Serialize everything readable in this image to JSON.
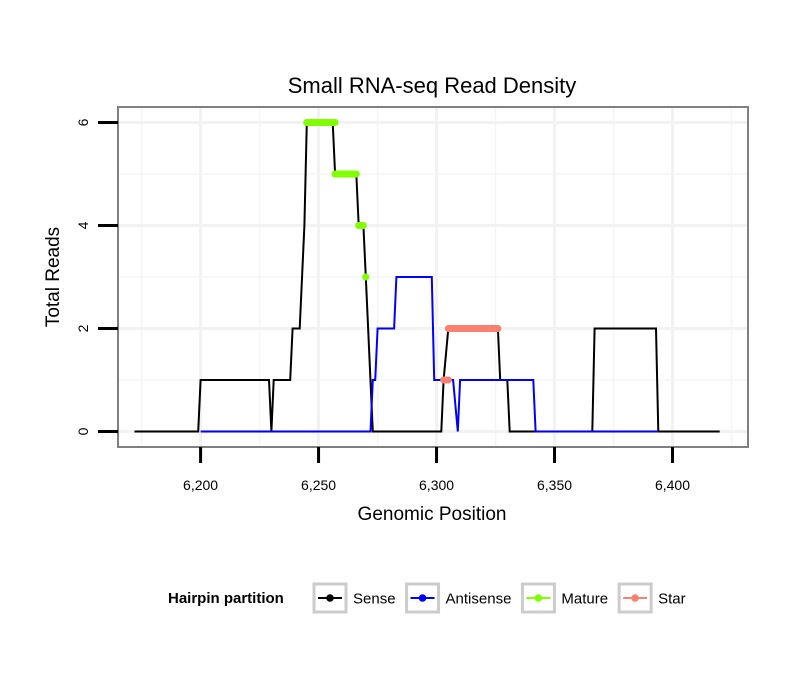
{
  "chart_data": {
    "type": "line",
    "title": "Small RNA-seq Read Density",
    "xlabel": "Genomic Position",
    "ylabel": "Total Reads",
    "xlim": [
      6165,
      6432
    ],
    "ylim": [
      -0.3,
      6.3
    ],
    "x_ticks": [
      6200,
      6250,
      6300,
      6350,
      6400
    ],
    "x_tick_labels": [
      "6,200",
      "6,250",
      "6,300",
      "6,350",
      "6,400"
    ],
    "y_ticks": [
      0,
      2,
      4,
      6
    ],
    "y_tick_labels": [
      "0",
      "2",
      "4",
      "6"
    ],
    "grid": true,
    "legend": {
      "title": "Hairpin partition",
      "position": "bottom",
      "entries": [
        "Sense",
        "Antisense",
        "Mature",
        "Star"
      ]
    },
    "series": [
      {
        "name": "Sense",
        "color": "#000000",
        "style": "line",
        "points": [
          [
            6172,
            0
          ],
          [
            6199,
            0
          ],
          [
            6200,
            1
          ],
          [
            6229,
            1
          ],
          [
            6230,
            0
          ],
          [
            6231,
            1
          ],
          [
            6238,
            1
          ],
          [
            6239,
            2
          ],
          [
            6242,
            2
          ],
          [
            6244,
            4
          ],
          [
            6245,
            6
          ],
          [
            6256,
            6
          ],
          [
            6257,
            5
          ],
          [
            6266,
            5
          ],
          [
            6267,
            4
          ],
          [
            6269,
            4
          ],
          [
            6270,
            3
          ],
          [
            6273,
            0
          ],
          [
            6302,
            0
          ],
          [
            6303,
            1
          ],
          [
            6305,
            2
          ],
          [
            6326,
            2
          ],
          [
            6327,
            1
          ],
          [
            6330,
            1
          ],
          [
            6331,
            0
          ],
          [
            6366,
            0
          ],
          [
            6367,
            2
          ],
          [
            6393,
            2
          ],
          [
            6394,
            0
          ],
          [
            6420,
            0
          ]
        ]
      },
      {
        "name": "Antisense",
        "color": "#0000ff",
        "style": "line",
        "points": [
          [
            6200,
            0
          ],
          [
            6272,
            0
          ],
          [
            6273,
            1
          ],
          [
            6274,
            1
          ],
          [
            6275,
            2
          ],
          [
            6282,
            2
          ],
          [
            6283,
            3
          ],
          [
            6298,
            3
          ],
          [
            6299,
            1
          ],
          [
            6307,
            1
          ],
          [
            6309,
            0
          ],
          [
            6310,
            1
          ],
          [
            6341,
            1
          ],
          [
            6342,
            0
          ],
          [
            6394,
            0
          ]
        ]
      },
      {
        "name": "Mature",
        "color": "#7fff00",
        "style": "segments",
        "segments": [
          [
            6245,
            6257,
            6
          ],
          [
            6257,
            6266,
            5
          ],
          [
            6267,
            6269,
            4
          ],
          [
            6270,
            6270,
            3
          ]
        ]
      },
      {
        "name": "Star",
        "color": "#fa8072",
        "style": "segments",
        "segments": [
          [
            6303,
            6305,
            1
          ],
          [
            6305,
            6326,
            2
          ]
        ]
      }
    ]
  }
}
